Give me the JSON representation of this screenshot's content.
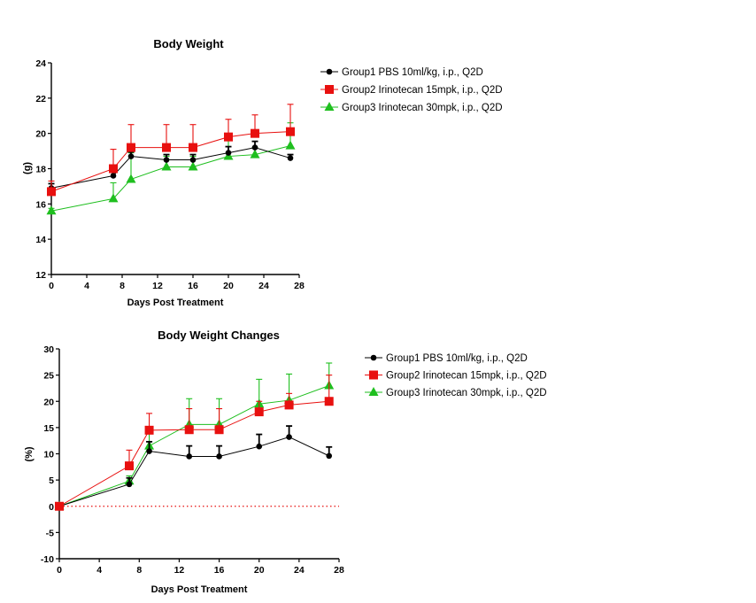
{
  "chart_data": [
    {
      "type": "line",
      "title": "Body Weight",
      "xlabel": "Days Post Treatment",
      "ylabel": "(g)",
      "xlim": [
        0,
        28
      ],
      "ylim": [
        12,
        24
      ],
      "xticks": [
        0,
        4,
        8,
        12,
        16,
        20,
        24,
        28
      ],
      "xtick_labels": [
        "0",
        "4",
        "8",
        "12",
        "16",
        "20",
        "24",
        "28"
      ],
      "yticks": [
        12,
        14,
        16,
        18,
        20,
        22,
        24
      ],
      "ytick_labels": [
        "12",
        "14",
        "16",
        "18",
        "20",
        "22",
        "24"
      ],
      "grid": false,
      "legend_position": "right",
      "series": [
        {
          "name": "Group1 PBS 10ml/kg, i.p., Q2D",
          "color": "#000000",
          "marker": "circle",
          "x": [
            0,
            7,
            9,
            13,
            16,
            20,
            23,
            27
          ],
          "values": [
            16.9,
            17.6,
            18.7,
            18.5,
            18.5,
            18.9,
            19.2,
            18.6
          ],
          "error": [
            0.25,
            0.2,
            0.25,
            0.3,
            0.3,
            0.35,
            0.35,
            0.2
          ]
        },
        {
          "name": "Group2 Irinotecan 15mpk, i.p., Q2D",
          "color": "#e8100f",
          "marker": "square",
          "x": [
            0,
            7,
            9,
            13,
            16,
            20,
            23,
            27
          ],
          "values": [
            16.7,
            18.0,
            19.2,
            19.2,
            19.2,
            19.8,
            20.0,
            20.1
          ],
          "error": [
            0.6,
            1.1,
            1.3,
            1.3,
            1.3,
            1.0,
            1.05,
            1.55
          ]
        },
        {
          "name": "Group3 Irinotecan 30mpk, i.p., Q2D",
          "color": "#1fbf1f",
          "marker": "triangle",
          "x": [
            0,
            7,
            9,
            13,
            16,
            20,
            23,
            27
          ],
          "values": [
            15.6,
            16.3,
            17.4,
            18.1,
            18.1,
            18.7,
            18.8,
            19.3
          ],
          "error": [
            0.15,
            0.9,
            1.5,
            0.6,
            0.6,
            1.3,
            0.4,
            1.3
          ]
        }
      ]
    },
    {
      "type": "line",
      "title": "Body Weight Changes",
      "xlabel": "Days Post Treatment",
      "ylabel": "(%)",
      "xlim": [
        0,
        28
      ],
      "ylim": [
        -10,
        30
      ],
      "xticks": [
        0,
        4,
        8,
        12,
        16,
        20,
        24,
        28
      ],
      "xtick_labels": [
        "0",
        "4",
        "8",
        "12",
        "16",
        "20",
        "24",
        "28"
      ],
      "yticks": [
        -10,
        -5,
        0,
        5,
        10,
        15,
        20,
        25,
        30
      ],
      "ytick_labels": [
        "-10",
        "-5",
        "0",
        "5",
        "10",
        "15",
        "20",
        "25",
        "30"
      ],
      "reference_line": {
        "y": 0,
        "style": "dotted",
        "color": "#e8100f"
      },
      "grid": false,
      "legend_position": "right",
      "series": [
        {
          "name": "Group1 PBS 10ml/kg, i.p., Q2D",
          "color": "#000000",
          "marker": "circle",
          "x": [
            0,
            7,
            9,
            13,
            16,
            20,
            23,
            27
          ],
          "values": [
            0,
            4.2,
            10.5,
            9.5,
            9.5,
            11.4,
            13.2,
            9.6
          ],
          "error": [
            0,
            1.2,
            1.8,
            2.0,
            2.0,
            2.3,
            2.1,
            1.7
          ]
        },
        {
          "name": "Group2 Irinotecan 15mpk, i.p., Q2D",
          "color": "#e8100f",
          "marker": "square",
          "x": [
            0,
            7,
            9,
            13,
            16,
            20,
            23,
            27
          ],
          "values": [
            0,
            7.7,
            14.5,
            14.6,
            14.6,
            18.0,
            19.3,
            20.0
          ],
          "error": [
            0,
            3.0,
            3.2,
            4.0,
            4.0,
            2.0,
            2.2,
            5.0
          ]
        },
        {
          "name": "Group3 Irinotecan 30mpk, i.p., Q2D",
          "color": "#1fbf1f",
          "marker": "triangle",
          "x": [
            0,
            7,
            9,
            13,
            16,
            20,
            23,
            27
          ],
          "values": [
            0,
            4.8,
            11.5,
            15.6,
            15.6,
            19.5,
            20.2,
            23.0
          ],
          "error": [
            0,
            1.0,
            2.5,
            4.9,
            4.9,
            4.7,
            5.0,
            4.3
          ]
        }
      ]
    }
  ]
}
